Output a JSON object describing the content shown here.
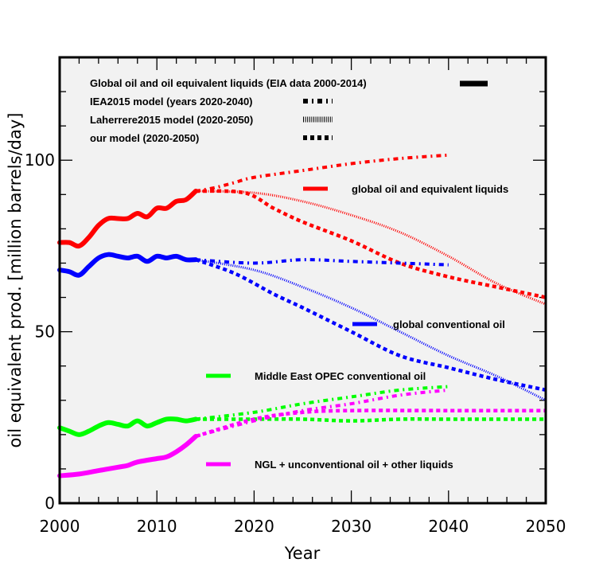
{
  "chart_data": {
    "type": "line",
    "title": "",
    "xlabel": "Year",
    "ylabel": "oil equivalent prod. [million barrels/day]",
    "xlim": [
      2000,
      2050
    ],
    "ylim": [
      0,
      130
    ],
    "xticks": [
      2000,
      2010,
      2020,
      2030,
      2040,
      2050
    ],
    "yticks": [
      0,
      50,
      100
    ],
    "grid": false,
    "background": "#f2f2f2",
    "style_legend": [
      {
        "label": "Global oil and oil equivalent liquids (EIA data 2000-2014)",
        "style": "solid"
      },
      {
        "label": "IEA2015 model (years 2020-2040)",
        "style": "dashdot"
      },
      {
        "label": "Laherrere2015 model (2020-2050)",
        "style": "fine-dotted"
      },
      {
        "label": "our model (2020-2050)",
        "style": "dotted"
      }
    ],
    "color_legend": [
      {
        "label": "global oil and equivalent liquids",
        "color": "#ff0000"
      },
      {
        "label": "global conventional oil",
        "color": "#0000ff"
      },
      {
        "label": "Middle East OPEC conventional oil",
        "color": "#00ff00"
      },
      {
        "label": "NGL + unconventional oil + other liquids",
        "color": "#ff00ff"
      }
    ],
    "series": [
      {
        "name": "global oil and equivalent liquids - EIA",
        "color": "#ff0000",
        "style": "solid",
        "x": [
          2000,
          2001,
          2002,
          2003,
          2004,
          2005,
          2006,
          2007,
          2008,
          2009,
          2010,
          2011,
          2012,
          2013,
          2014
        ],
        "y": [
          76,
          76,
          75,
          77.5,
          81,
          83,
          83,
          83,
          84.5,
          83.5,
          86,
          86,
          88,
          88.5,
          91
        ]
      },
      {
        "name": "global oil and equivalent liquids - IEA2015",
        "color": "#ff0000",
        "style": "dashdot",
        "x": [
          2014,
          2016,
          2018,
          2020,
          2025,
          2030,
          2035,
          2040
        ],
        "y": [
          91,
          92,
          93.5,
          95,
          97,
          99,
          100.5,
          101.5
        ]
      },
      {
        "name": "global oil and equivalent liquids - Laherrere2015",
        "color": "#ff0000",
        "style": "fine-dotted",
        "x": [
          2014,
          2020,
          2025,
          2030,
          2035,
          2040,
          2045,
          2050
        ],
        "y": [
          91,
          90.5,
          88,
          84,
          79,
          72,
          64,
          58
        ]
      },
      {
        "name": "global oil and equivalent liquids - our model",
        "color": "#ff0000",
        "style": "dotted",
        "x": [
          2014,
          2019,
          2022,
          2025,
          2030,
          2035,
          2040,
          2045,
          2050
        ],
        "y": [
          91,
          90.5,
          86,
          82,
          76.5,
          70,
          66,
          63,
          60
        ]
      },
      {
        "name": "global conventional oil - EIA",
        "color": "#0000ff",
        "style": "solid",
        "x": [
          2000,
          2001,
          2002,
          2003,
          2004,
          2005,
          2006,
          2007,
          2008,
          2009,
          2010,
          2011,
          2012,
          2013,
          2014
        ],
        "y": [
          68,
          67.5,
          66.5,
          69,
          71.5,
          72.5,
          72,
          71.5,
          72,
          70.5,
          72,
          71.5,
          72,
          71,
          71
        ]
      },
      {
        "name": "global conventional oil - IEA2015",
        "color": "#0000ff",
        "style": "dashdot",
        "x": [
          2014,
          2020,
          2025,
          2030,
          2035,
          2040
        ],
        "y": [
          71,
          70,
          71,
          70.5,
          70,
          69.5
        ]
      },
      {
        "name": "global conventional oil - Laherrere2015",
        "color": "#0000ff",
        "style": "fine-dotted",
        "x": [
          2014,
          2020,
          2025,
          2030,
          2035,
          2040,
          2045,
          2050
        ],
        "y": [
          71,
          68,
          63,
          57,
          50,
          43,
          37,
          30
        ]
      },
      {
        "name": "global conventional oil - our model",
        "color": "#0000ff",
        "style": "dotted",
        "x": [
          2014,
          2018,
          2022,
          2025,
          2030,
          2035,
          2040,
          2045,
          2050
        ],
        "y": [
          71,
          67,
          61,
          57,
          50,
          43,
          39.5,
          36,
          33
        ]
      },
      {
        "name": "Middle East OPEC conventional oil - EIA",
        "color": "#00ff00",
        "style": "solid",
        "x": [
          2000,
          2001,
          2002,
          2003,
          2004,
          2005,
          2006,
          2007,
          2008,
          2009,
          2010,
          2011,
          2012,
          2013,
          2014
        ],
        "y": [
          22,
          21,
          20,
          21,
          22.5,
          23.5,
          23,
          22.5,
          24,
          22.5,
          23.5,
          24.5,
          24.5,
          24,
          24.5
        ]
      },
      {
        "name": "Middle East OPEC conventional oil - IEA2015",
        "color": "#00ff00",
        "style": "dashdot",
        "x": [
          2014,
          2020,
          2025,
          2030,
          2035,
          2040
        ],
        "y": [
          24.5,
          26.5,
          29,
          31,
          33,
          34
        ]
      },
      {
        "name": "Middle East OPEC conventional oil - our model",
        "color": "#00ff00",
        "style": "dotted",
        "x": [
          2014,
          2020,
          2025,
          2030,
          2035,
          2040,
          2050
        ],
        "y": [
          24.5,
          24.5,
          24.5,
          24,
          24.5,
          24.5,
          24.5
        ]
      },
      {
        "name": "NGL + unconventional oil + other liquids - EIA",
        "color": "#ff00ff",
        "style": "solid",
        "x": [
          2000,
          2002,
          2004,
          2006,
          2007,
          2008,
          2010,
          2011,
          2012,
          2013,
          2014
        ],
        "y": [
          8,
          8.5,
          9.5,
          10.5,
          11,
          12,
          13,
          13.5,
          15,
          17,
          19.5
        ]
      },
      {
        "name": "NGL + unconventional oil + other liquids - IEA2015",
        "color": "#ff00ff",
        "style": "dashdot",
        "x": [
          2014,
          2020,
          2025,
          2030,
          2035,
          2040
        ],
        "y": [
          19.5,
          24,
          27,
          29,
          31.5,
          33
        ]
      },
      {
        "name": "NGL + unconventional oil + other liquids - our model",
        "color": "#ff00ff",
        "style": "dotted",
        "x": [
          2014,
          2020,
          2025,
          2030,
          2040,
          2050
        ],
        "y": [
          19.5,
          24.5,
          26.5,
          27,
          27,
          27
        ]
      }
    ]
  }
}
